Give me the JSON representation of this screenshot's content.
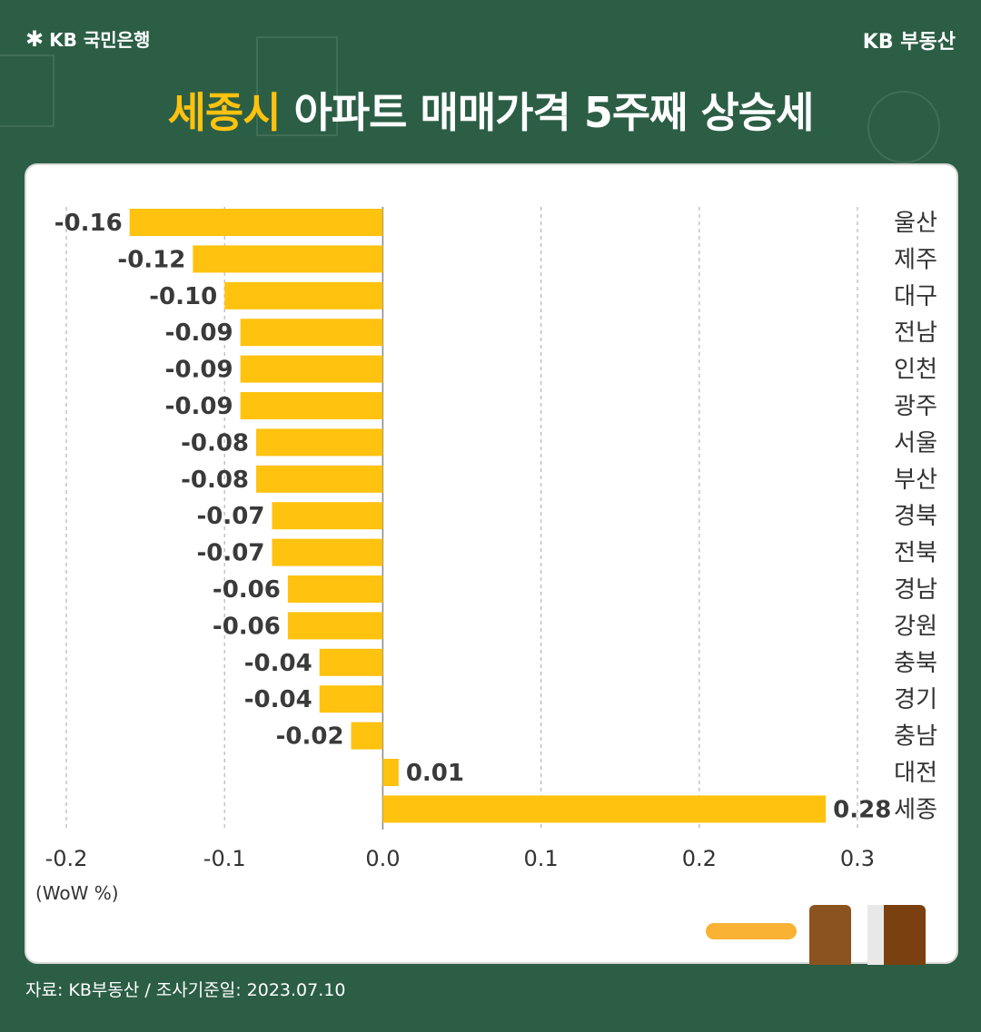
{
  "brand": {
    "left": "KB 국민은행",
    "right": "KB 부동산"
  },
  "title": {
    "highlight": "세종시",
    "rest": " 아파트 매매가격 5주째 상승세"
  },
  "unit_label": "(WoW %)",
  "footer": "자료: KB부동산 / 조사기준일: 2023.07.10",
  "colors": {
    "background": "#2b5e45",
    "bar": "#ffc20e",
    "title_highlight": "#ffc20e"
  },
  "chart_data": {
    "type": "bar",
    "orientation": "horizontal",
    "categories": [
      "울산",
      "제주",
      "대구",
      "전남",
      "인천",
      "광주",
      "서울",
      "부산",
      "경북",
      "전북",
      "경남",
      "강원",
      "충북",
      "경기",
      "충남",
      "대전",
      "세종"
    ],
    "values": [
      -0.16,
      -0.12,
      -0.1,
      -0.09,
      -0.09,
      -0.09,
      -0.08,
      -0.08,
      -0.07,
      -0.07,
      -0.06,
      -0.06,
      -0.04,
      -0.04,
      -0.02,
      0.01,
      0.28
    ],
    "value_labels": [
      "-0.16",
      "-0.12",
      "-0.10",
      "-0.09",
      "-0.09",
      "-0.09",
      "-0.08",
      "-0.08",
      "-0.07",
      "-0.07",
      "-0.06",
      "-0.06",
      "-0.04",
      "-0.04",
      "-0.02",
      "0.01",
      "0.28"
    ],
    "xticks": [
      "-0.2",
      "-0.1",
      "0.0",
      "0.1",
      "0.2",
      "0.3"
    ],
    "xtick_values": [
      -0.2,
      -0.1,
      0.0,
      0.1,
      0.2,
      0.3
    ],
    "xlim": [
      -0.2,
      0.3
    ],
    "grid": "vertical dashed"
  }
}
